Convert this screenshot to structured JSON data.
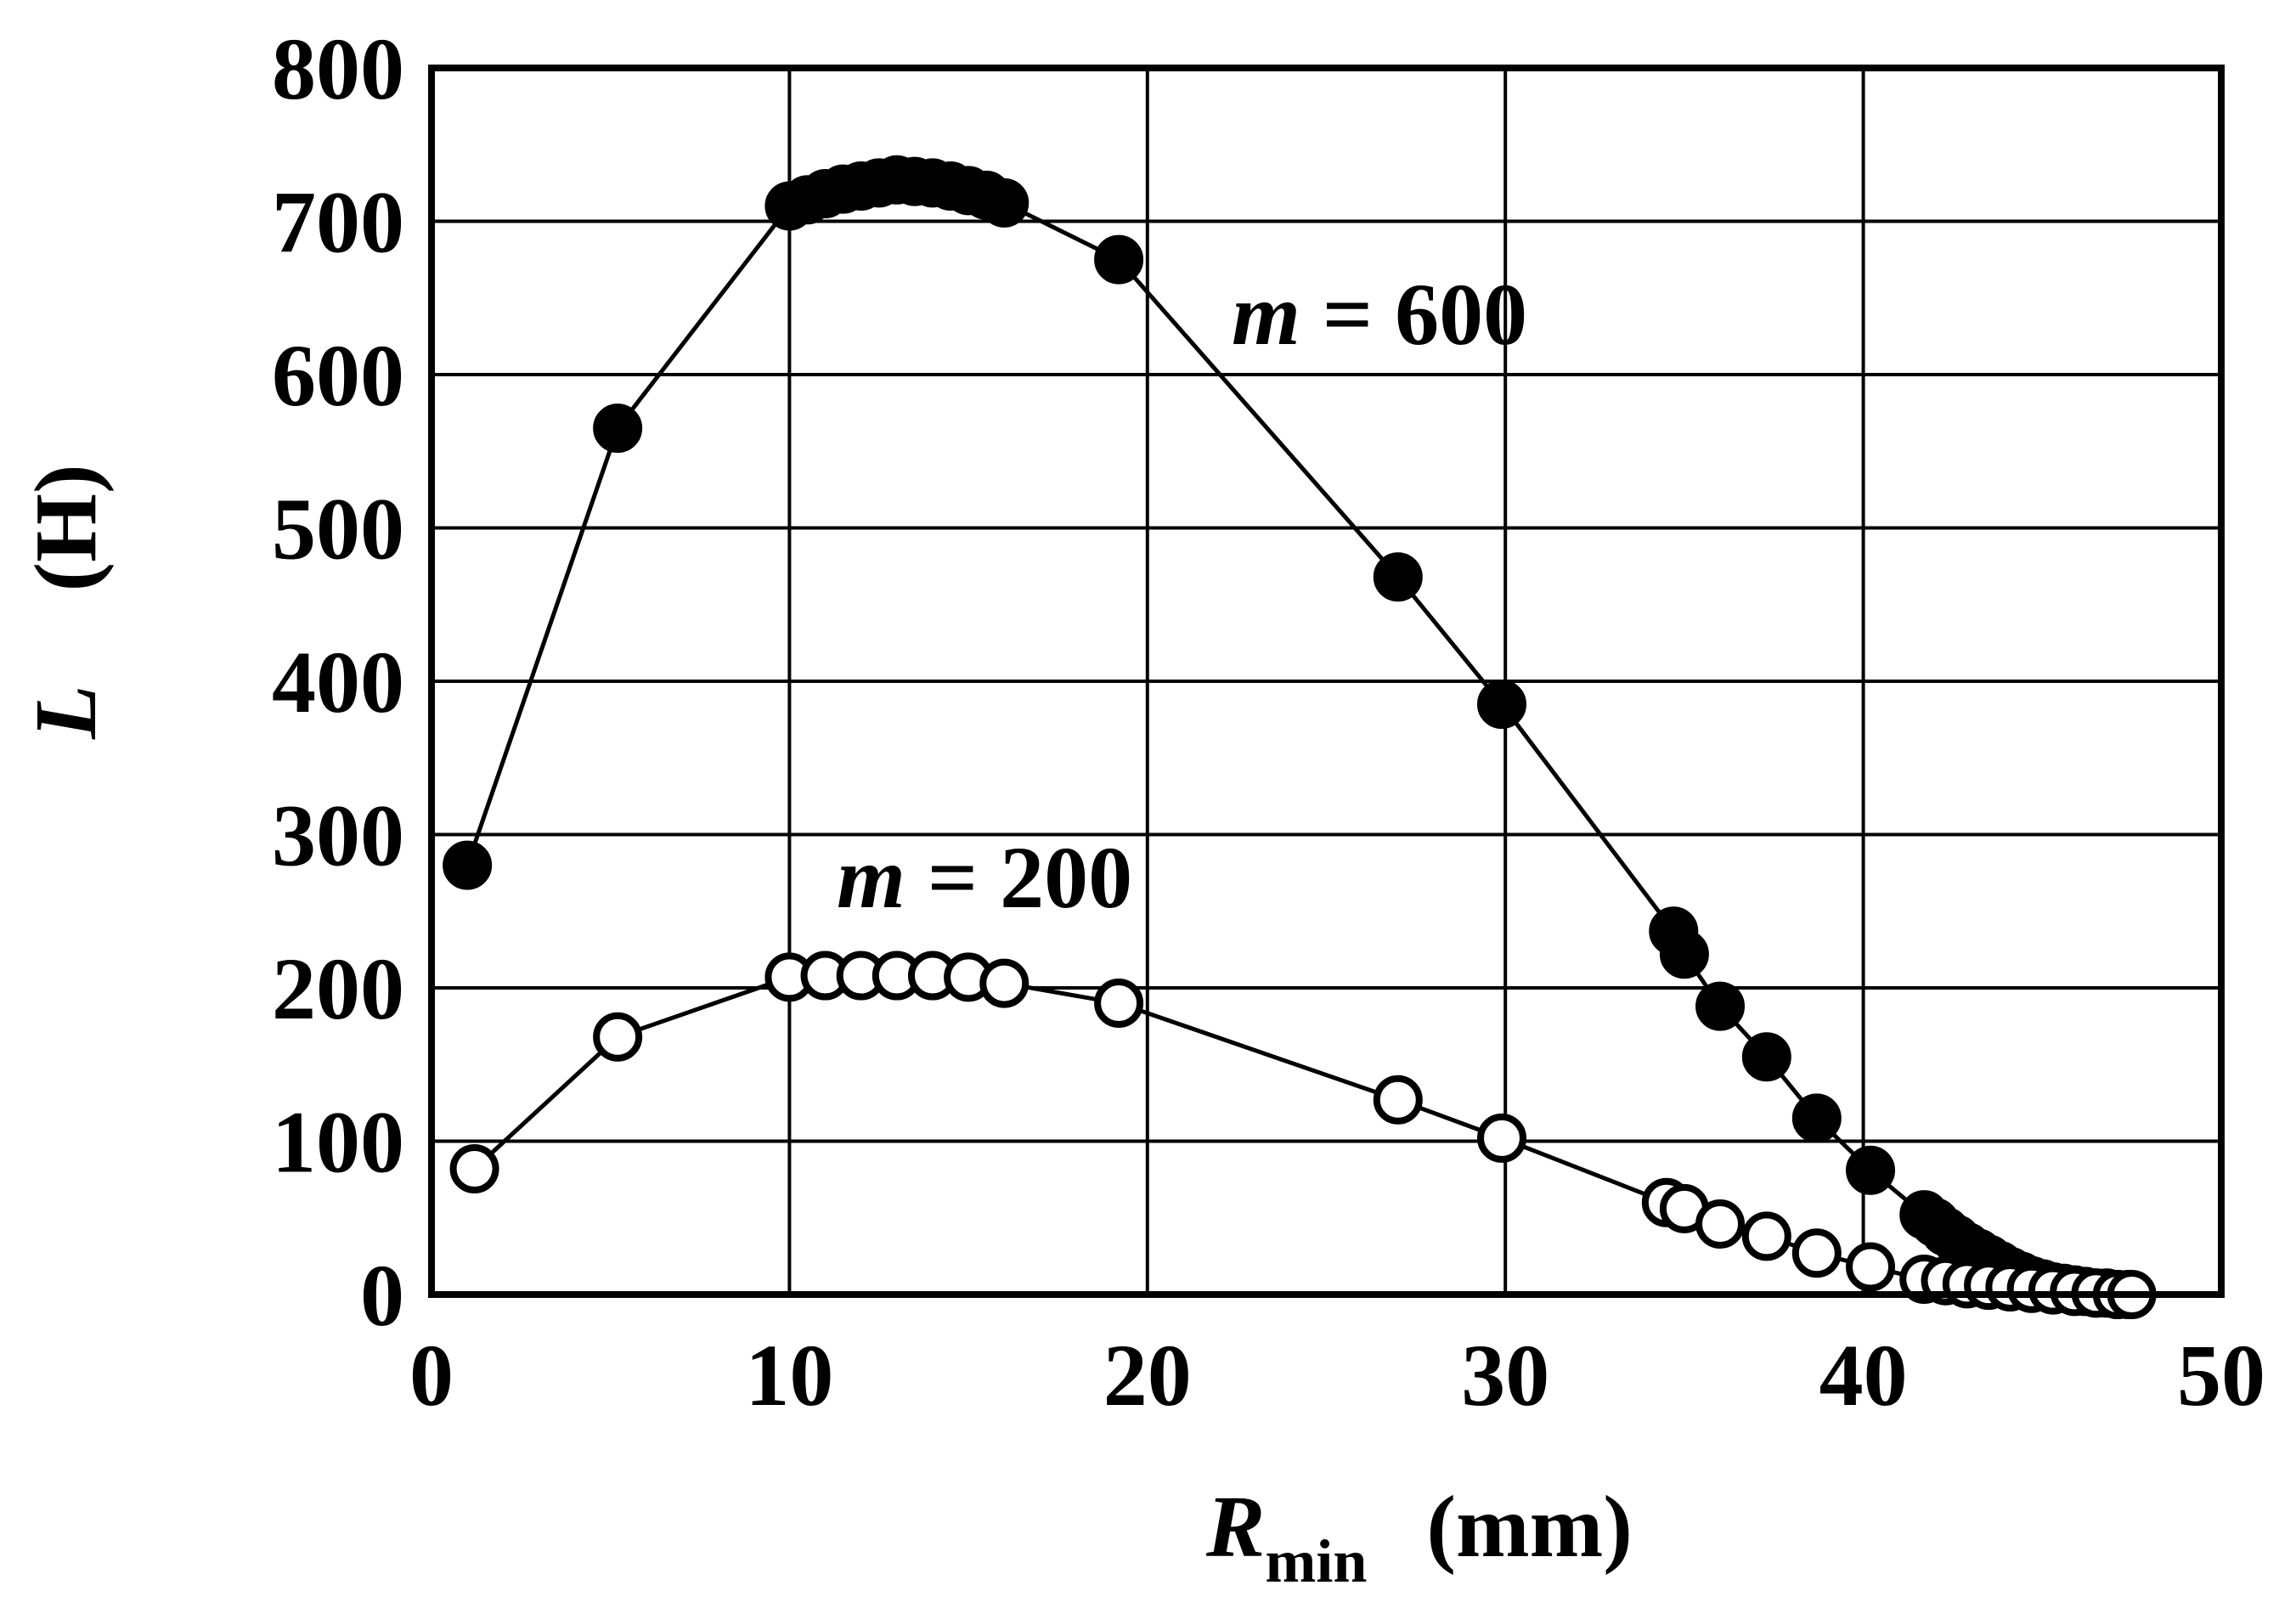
{
  "chart_data": {
    "type": "scatter",
    "title": "",
    "x_range": [
      0,
      50
    ],
    "y_range": [
      0,
      800
    ],
    "x_ticks": [
      "0",
      "10",
      "20",
      "30",
      "40",
      "50"
    ],
    "y_ticks": [
      "0",
      "100",
      "200",
      "300",
      "400",
      "500",
      "600",
      "700",
      "800"
    ],
    "x_tick_values": [
      0,
      10,
      20,
      30,
      40,
      50
    ],
    "y_tick_values": [
      0,
      100,
      200,
      300,
      400,
      500,
      600,
      700,
      800
    ],
    "grid": true,
    "xlabel": {
      "symbol": "R",
      "subscript": "min",
      "unit": "(mm)"
    },
    "ylabel": {
      "symbol": "L",
      "unit": "(H)"
    },
    "series": [
      {
        "name": "m = 600",
        "label_var": "m",
        "label_rest": " = 600",
        "marker": "filled-circle",
        "x": [
          1,
          5.2,
          10,
          10.5,
          11,
          11.5,
          12,
          12.5,
          13,
          13.5,
          14,
          14.5,
          15,
          15.5,
          16,
          19.2,
          27,
          29.9,
          34.7,
          35,
          36,
          37.3,
          38.7,
          40.2,
          41.7,
          42,
          42.3,
          42.6,
          42.9,
          43.2,
          43.5,
          43.8,
          44.1,
          44.4,
          44.7,
          45,
          45.3,
          45.6,
          45.9,
          46.2,
          46.5,
          46.8,
          47.1,
          47.4
        ],
        "y": [
          280,
          565,
          710,
          714,
          718,
          721,
          723,
          725,
          727,
          726,
          725,
          723,
          720,
          717,
          712,
          675,
          468,
          385,
          237,
          222,
          188,
          155,
          115,
          81,
          52,
          47,
          41,
          36,
          31,
          27,
          23,
          19,
          15,
          12,
          9,
          7,
          5,
          4,
          3,
          2,
          1,
          1,
          0,
          0
        ]
      },
      {
        "name": "m = 200",
        "label_var": "m",
        "label_rest": " = 200",
        "marker": "open-circle",
        "x": [
          1.2,
          5.2,
          10,
          11,
          12,
          13,
          14,
          15,
          16,
          19.2,
          27,
          29.9,
          34.5,
          35,
          36,
          37.3,
          38.7,
          40.2,
          41.7,
          42.3,
          42.9,
          43.5,
          44.1,
          44.7,
          45.3,
          45.9,
          46.5,
          47.1,
          47.5
        ],
        "y": [
          82,
          168,
          207,
          208,
          208,
          208,
          208,
          207,
          203,
          190,
          127,
          102,
          60,
          56,
          46,
          38,
          27,
          18,
          10,
          9,
          7,
          6,
          5,
          4,
          3,
          2,
          1,
          0,
          0
        ]
      }
    ]
  }
}
